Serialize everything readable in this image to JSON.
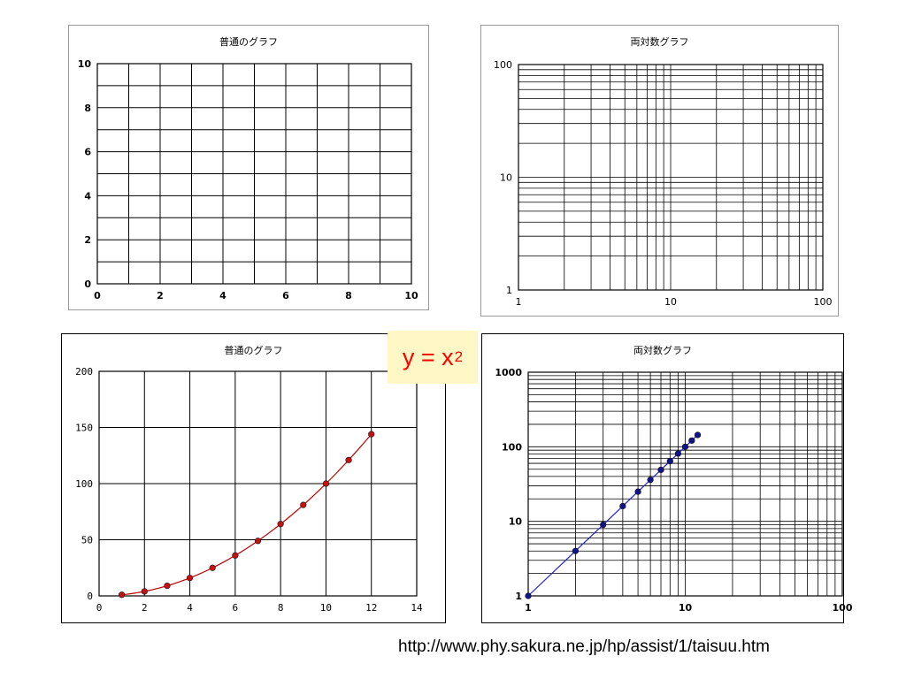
{
  "formula": {
    "base": "y = x",
    "exponent": "2",
    "color": "#ff0000",
    "background": "#fff7c6"
  },
  "source_url": "http://www.phy.sakura.ne.jp/hp/assist/1/taisuu.htm",
  "chart_data": [
    {
      "id": "p1",
      "type": "line",
      "title": "普通のグラフ",
      "xscale": "linear",
      "yscale": "linear",
      "xlim": [
        0,
        10
      ],
      "ylim": [
        0,
        10
      ],
      "xticks": [
        0,
        2,
        4,
        6,
        8,
        10
      ],
      "yticks": [
        0,
        2,
        4,
        6,
        8,
        10
      ],
      "xtick_labels": [
        "0",
        "2",
        "4",
        "6",
        "8",
        "10"
      ],
      "ytick_labels": [
        "0",
        "2",
        "4",
        "6",
        "8",
        "10"
      ],
      "grid_x": [
        1,
        2,
        3,
        4,
        5,
        6,
        7,
        8,
        9
      ],
      "grid_y": [
        1,
        2,
        3,
        4,
        5,
        6,
        7,
        8,
        9
      ],
      "series": []
    },
    {
      "id": "p2",
      "type": "line",
      "title": "両対数グラフ",
      "xscale": "log",
      "yscale": "log",
      "xlim": [
        1,
        100
      ],
      "ylim": [
        1,
        100
      ],
      "xticks": [
        1,
        10,
        100
      ],
      "yticks": [
        1,
        10,
        100
      ],
      "xtick_labels": [
        "1",
        "10",
        "100"
      ],
      "ytick_labels": [
        "1",
        "10",
        "100"
      ],
      "series": []
    },
    {
      "id": "p3",
      "type": "line",
      "title": "普通のグラフ",
      "xscale": "linear",
      "yscale": "linear",
      "xlim": [
        0,
        14
      ],
      "ylim": [
        0,
        200
      ],
      "xticks": [
        0,
        2,
        4,
        6,
        8,
        10,
        12,
        14
      ],
      "yticks": [
        0,
        50,
        100,
        150,
        200
      ],
      "xtick_labels": [
        "0",
        "2",
        "4",
        "6",
        "8",
        "10",
        "12",
        "14"
      ],
      "ytick_labels": [
        "0",
        "50",
        "100",
        "150",
        "200"
      ],
      "grid_x": [
        2,
        4,
        6,
        8,
        10,
        12
      ],
      "grid_y": [
        50,
        100,
        150
      ],
      "series": [
        {
          "color": "#c00000",
          "marker_fill": "#c81010",
          "x": [
            1,
            2,
            3,
            4,
            5,
            6,
            7,
            8,
            9,
            10,
            11,
            12
          ],
          "y": [
            1,
            4,
            9,
            16,
            25,
            36,
            49,
            64,
            81,
            100,
            121,
            144
          ]
        }
      ]
    },
    {
      "id": "p4",
      "type": "line",
      "title": "両対数グラフ",
      "xscale": "log",
      "yscale": "log",
      "xlim": [
        1,
        100
      ],
      "ylim": [
        1,
        1000
      ],
      "xticks": [
        1,
        10,
        100
      ],
      "yticks": [
        1,
        10,
        100,
        1000
      ],
      "xtick_labels": [
        "1",
        "10",
        "100"
      ],
      "ytick_labels": [
        "1",
        "10",
        "100",
        "1000"
      ],
      "series": [
        {
          "color": "#1f1fd0",
          "marker_fill": "#12128c",
          "x": [
            1,
            2,
            3,
            4,
            5,
            6,
            7,
            8,
            9,
            10,
            11,
            12
          ],
          "y": [
            1,
            4,
            9,
            16,
            25,
            36,
            49,
            64,
            81,
            100,
            121,
            144
          ]
        }
      ]
    }
  ]
}
